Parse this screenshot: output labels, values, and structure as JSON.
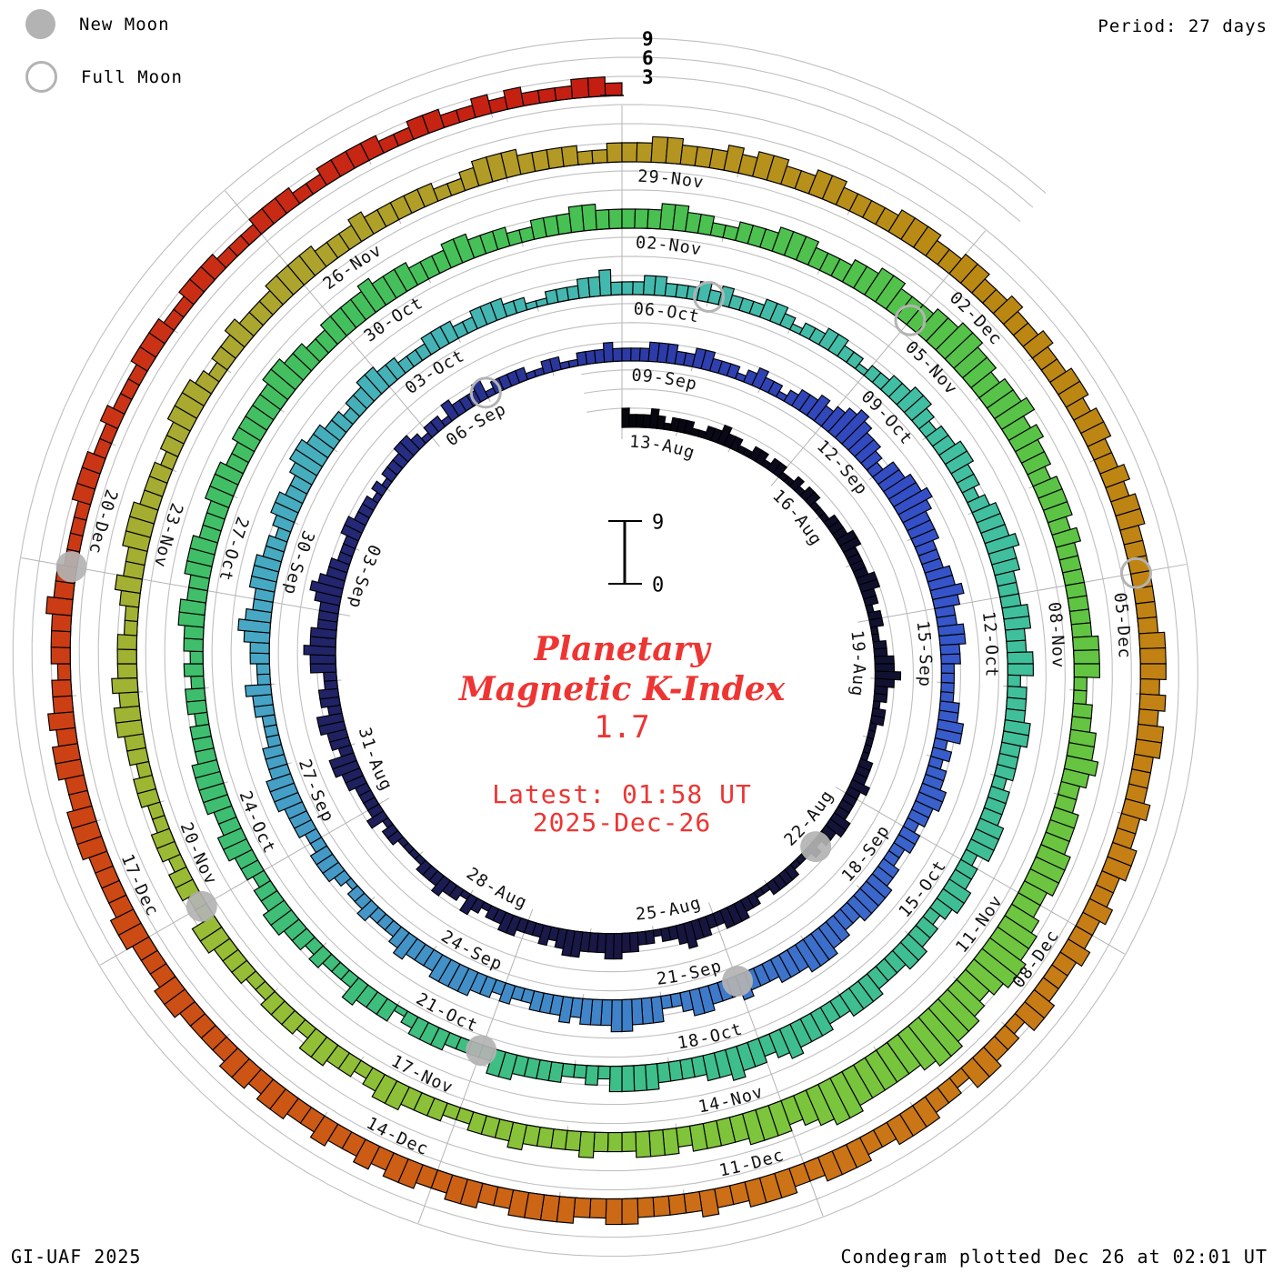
{
  "header": {
    "legend": {
      "new_moon": "New Moon",
      "full_moon": "Full Moon"
    },
    "period": "Period: 27 days"
  },
  "center": {
    "title_line1": "Planetary",
    "title_line2": "Magnetic K-Index",
    "current_value": "1.7",
    "latest_line1": "Latest: 01:58 UT",
    "latest_line2": "2025-Dec-26"
  },
  "footer": {
    "left": "GI-UAF 2025",
    "right": "Condegram plotted Dec 26 at 02:01 UT"
  },
  "chart_data": {
    "type": "spiral-bar",
    "title": "Planetary Magnetic K-Index condegram",
    "interval_hours": 3,
    "bars_per_day": 8,
    "days_per_ring": 27,
    "ring_count": 5,
    "k_range": [
      0,
      9
    ],
    "radial_scale_ticks": [
      "3",
      "6",
      "9"
    ],
    "center_scale": {
      "top": "9",
      "bottom": "0"
    },
    "grid_color": "#bfbfbf",
    "radial_line_color": "#b4b4b4",
    "moon_color": "#b3b3b3",
    "accent_red": "#ee3533",
    "bar_stroke": "#000000",
    "rings": [
      {
        "start": "13-Aug",
        "end": "08-Sep",
        "labels": [
          "13-Aug",
          "16-Aug",
          "19-Aug",
          "22-Aug",
          "25-Aug",
          "28-Aug",
          "31-Aug",
          "03-Sep",
          "06-Sep"
        ],
        "values": "322232122211223221122122112122111222332222332212211223343221221111122232222332212111222211223332233432212233443334432322233221231223222111122132222334423344233224454433345433222332221212223321221322231222211221122232"
      },
      {
        "start": "09-Sep",
        "end": "05-Oct",
        "labels": [
          "09-Sep",
          "12-Sep",
          "15-Sep",
          "18-Sep",
          "21-Sep",
          "24-Sep",
          "27-Sep",
          "30-Sep",
          "03-Oct"
        ],
        "values": "222333223322212322123343456544324455654443334454334433222233442323344332332233444433445554443334333443224445544434333223233444433343222322123332233344433322233422334543344433234433455443323344332223332233322112223342"
      },
      {
        "start": "06-Oct",
        "end": "01-Nov",
        "labels": [
          "06-Oct",
          "09-Oct",
          "12-Oct",
          "15-Oct",
          "18-Oct",
          "21-Oct",
          "24-Oct",
          "27-Oct",
          "30-Oct"
        ],
        "values": "223322232322233212233221223344323344332344454433344334423334433323334442334432334433344433444543445443333444423223333442222333213334222323344332334433444433323323233443344433344433444445544334444544433344333223334433"
      },
      {
        "start": "02-Nov",
        "end": "28-Nov",
        "labels": [
          "02-Nov",
          "05-Nov",
          "08-Nov",
          "11-Nov",
          "14-Nov",
          "17-Nov",
          "20-Nov",
          "23-Nov",
          "26-Nov"
        ],
        "values": "333443322333444333445544455665545564544344434333333344422334454334445554456677656778876666677654555444434443334333343332233344323344233322333442233233223323344343332234334443332334443233433344443334333332234443333223"
      },
      {
        "start": "29-Nov",
        "end": "25-Dec",
        "labels": [
          "29-Nov",
          "02-Dec",
          "05-Dec",
          "08-Dec",
          "11-Dec",
          "14-Dec",
          "17-Dec",
          "20-Dec"
        ],
        "values": "334433343443344333344433443343343344344334344333333344434344333433443343343334423344233444334443344433433334433444433443344343343344344333344333443333444334434332333433222233322322233322333222333223333223322323222332"
      }
    ],
    "moons": [
      {
        "kind": "new",
        "date": "23-Aug",
        "ring": 0,
        "day": 10
      },
      {
        "kind": "full",
        "date": "07-Sep",
        "ring": 0,
        "day": 25
      },
      {
        "kind": "new",
        "date": "21-Sep",
        "ring": 1,
        "day": 12
      },
      {
        "kind": "full",
        "date": "07-Oct",
        "ring": 2,
        "day": 1
      },
      {
        "kind": "new",
        "date": "21-Oct",
        "ring": 2,
        "day": 15
      },
      {
        "kind": "full",
        "date": "05-Nov",
        "ring": 3,
        "day": 3
      },
      {
        "kind": "new",
        "date": "20-Nov",
        "ring": 3,
        "day": 18
      },
      {
        "kind": "full",
        "date": "05-Dec",
        "ring": 4,
        "day": 6
      },
      {
        "kind": "new",
        "date": "20-Dec",
        "ring": 4,
        "day": 21
      }
    ],
    "colormap": [
      [
        0.0,
        "#06060e"
      ],
      [
        0.04,
        "#10102e"
      ],
      [
        0.1,
        "#181744"
      ],
      [
        0.16,
        "#232670"
      ],
      [
        0.2,
        "#2c3aa6"
      ],
      [
        0.235,
        "#3450c8"
      ],
      [
        0.27,
        "#3a64cc"
      ],
      [
        0.31,
        "#418cc8"
      ],
      [
        0.35,
        "#47a6c6"
      ],
      [
        0.39,
        "#44b6b2"
      ],
      [
        0.43,
        "#41bfa2"
      ],
      [
        0.49,
        "#3ebe8e"
      ],
      [
        0.545,
        "#3ebe6e"
      ],
      [
        0.6,
        "#48c052"
      ],
      [
        0.645,
        "#5fc443"
      ],
      [
        0.69,
        "#7cc53c"
      ],
      [
        0.73,
        "#97bd35"
      ],
      [
        0.77,
        "#aaa830"
      ],
      [
        0.8,
        "#b49723"
      ],
      [
        0.825,
        "#ba8812"
      ],
      [
        0.86,
        "#c48014"
      ],
      [
        0.89,
        "#cc7317"
      ],
      [
        0.915,
        "#cc5d15"
      ],
      [
        0.945,
        "#cc4114"
      ],
      [
        0.975,
        "#c92d15"
      ],
      [
        1.0,
        "#c41d12"
      ]
    ]
  }
}
